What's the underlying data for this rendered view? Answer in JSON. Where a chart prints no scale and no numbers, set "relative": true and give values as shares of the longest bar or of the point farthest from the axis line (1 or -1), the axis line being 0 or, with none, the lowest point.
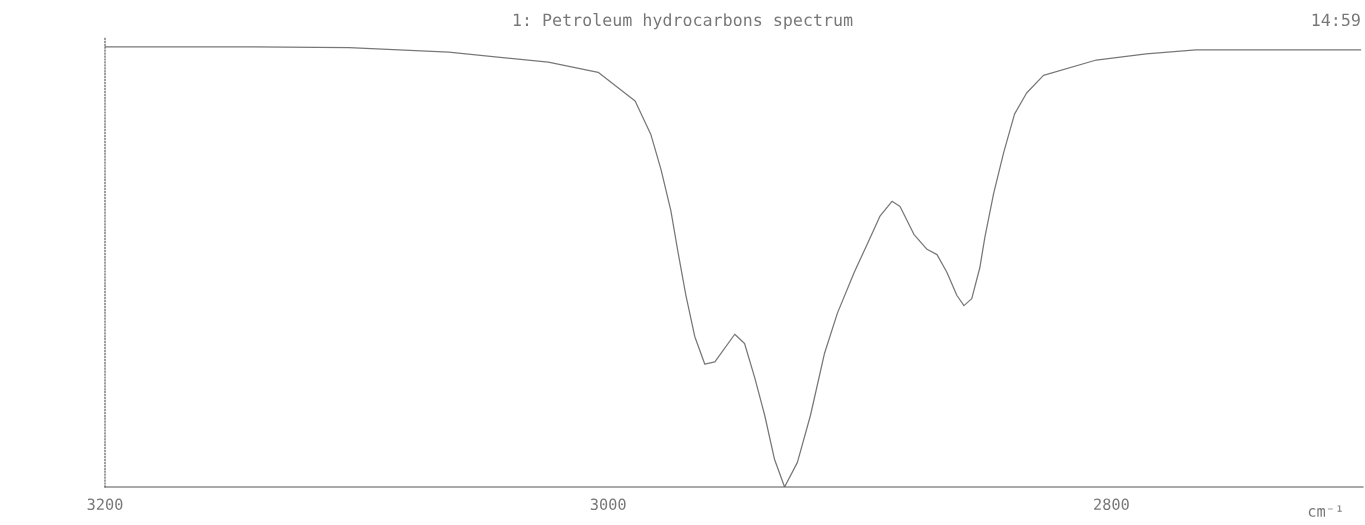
{
  "chart_data": {
    "type": "line",
    "title": "1: Petroleum hydrocarbons spectrum",
    "xlabel": "cm⁻¹",
    "annotations": [
      "14:59"
    ],
    "relative": true,
    "grid": false,
    "marker": "none",
    "line_style": "solid",
    "xlim": [
      3200,
      2700
    ],
    "xticks": [
      3200,
      3000,
      2800
    ],
    "series": [
      {
        "color": "#777777",
        "x": [
          3200,
          3142.6,
          3103,
          3063.4,
          3023.8,
          3004,
          2989.3,
          2983.0,
          2979.0,
          2975.1,
          2972.3,
          2969.1,
          2965.6,
          2961.6,
          2957.6,
          2949.7,
          2945.8,
          2941.8,
          2937.8,
          2933.9,
          2929.9,
          2924.8,
          2919.6,
          2914.1,
          2908.9,
          2902.2,
          2897.1,
          2891.9,
          2887.2,
          2884.0,
          2878.5,
          2873.3,
          2869.3,
          2865.4,
          2861.4,
          2858.6,
          2855.5,
          2852.3,
          2850.3,
          2846.8,
          2842.8,
          2838.5,
          2833.7,
          2827.0,
          2806.0,
          2786.2,
          2766.4,
          2726.8,
          2701
        ],
        "values": [
          1.0,
          1.0,
          0.998,
          0.988,
          0.965,
          0.942,
          0.877,
          0.8,
          0.721,
          0.628,
          0.535,
          0.435,
          0.342,
          0.279,
          0.284,
          0.347,
          0.326,
          0.249,
          0.163,
          0.063,
          0.0,
          0.056,
          0.163,
          0.302,
          0.395,
          0.488,
          0.551,
          0.616,
          0.649,
          0.637,
          0.574,
          0.54,
          0.528,
          0.488,
          0.435,
          0.412,
          0.428,
          0.498,
          0.567,
          0.667,
          0.76,
          0.847,
          0.895,
          0.935,
          0.97,
          0.984,
          0.993,
          0.993,
          0.993
        ]
      }
    ]
  }
}
